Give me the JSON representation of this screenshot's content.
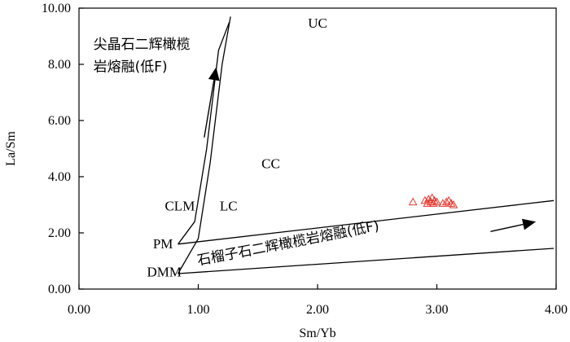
{
  "chart_data": {
    "type": "scatter",
    "xlabel": "Sm/Yb",
    "ylabel": "La/Sm",
    "xlim": [
      0,
      4
    ],
    "ylim": [
      0,
      10
    ],
    "x_ticks": [
      "0.00",
      "1.00",
      "2.00",
      "3.00",
      "4.00"
    ],
    "y_ticks": [
      "0.00",
      "2.00",
      "4.00",
      "6.00",
      "8.00",
      "10.00"
    ],
    "grid": false,
    "marker": "triangle",
    "marker_color": "#e8392f",
    "points": [
      {
        "x": 2.8,
        "y": 3.1
      },
      {
        "x": 2.9,
        "y": 3.15
      },
      {
        "x": 2.92,
        "y": 3.05
      },
      {
        "x": 2.93,
        "y": 3.2
      },
      {
        "x": 2.95,
        "y": 3.1
      },
      {
        "x": 2.96,
        "y": 3.25
      },
      {
        "x": 2.97,
        "y": 3.05
      },
      {
        "x": 2.98,
        "y": 3.15
      },
      {
        "x": 3.0,
        "y": 3.1
      },
      {
        "x": 3.05,
        "y": 3.05
      },
      {
        "x": 3.08,
        "y": 3.1
      },
      {
        "x": 3.1,
        "y": 3.15
      },
      {
        "x": 3.12,
        "y": 3.05
      },
      {
        "x": 3.14,
        "y": 3.0
      }
    ],
    "reference_lines": [
      {
        "points": [
          [
            0.83,
            0.55
          ],
          [
            1.0,
            1.8
          ],
          [
            1.1,
            4.5
          ],
          [
            1.2,
            8.0
          ],
          [
            1.27,
            9.7
          ]
        ]
      },
      {
        "points": [
          [
            0.83,
            1.6
          ],
          [
            0.97,
            2.4
          ],
          [
            1.07,
            5.0
          ],
          [
            1.17,
            8.5
          ],
          [
            1.26,
            9.5
          ]
        ]
      },
      {
        "points": [
          [
            0.83,
            1.6
          ],
          [
            3.98,
            3.15
          ]
        ]
      },
      {
        "points": [
          [
            0.83,
            0.55
          ],
          [
            3.98,
            1.45
          ]
        ]
      }
    ],
    "arrows": [
      {
        "from": [
          1.05,
          5.4
        ],
        "to": [
          1.15,
          7.9
        ]
      },
      {
        "from": [
          3.45,
          2.05
        ],
        "to": [
          3.83,
          2.4
        ]
      }
    ],
    "labels": {
      "UC": {
        "text": "UC",
        "x": 1.92,
        "y": 9.3
      },
      "CC": {
        "text": "CC",
        "x": 1.53,
        "y": 4.3
      },
      "CLM": {
        "text": "CLM",
        "x": 0.72,
        "y": 2.8
      },
      "LC": {
        "text": "LC",
        "x": 1.18,
        "y": 2.8
      },
      "PM": {
        "text": "PM",
        "x": 0.62,
        "y": 1.45
      },
      "DMM": {
        "text": "DMM",
        "x": 0.57,
        "y": 0.45
      },
      "spinel_line1": {
        "text": "尖晶石二辉橄榄",
        "x": 0.12,
        "y": 8.55
      },
      "spinel_line2": {
        "text": "岩熔融(低F)",
        "x": 0.12,
        "y": 7.75
      },
      "garnet": {
        "text": "石榴子石二辉橄榄岩熔融(低F)",
        "x": 1.0,
        "y": 0.85,
        "angle": -11
      }
    }
  }
}
